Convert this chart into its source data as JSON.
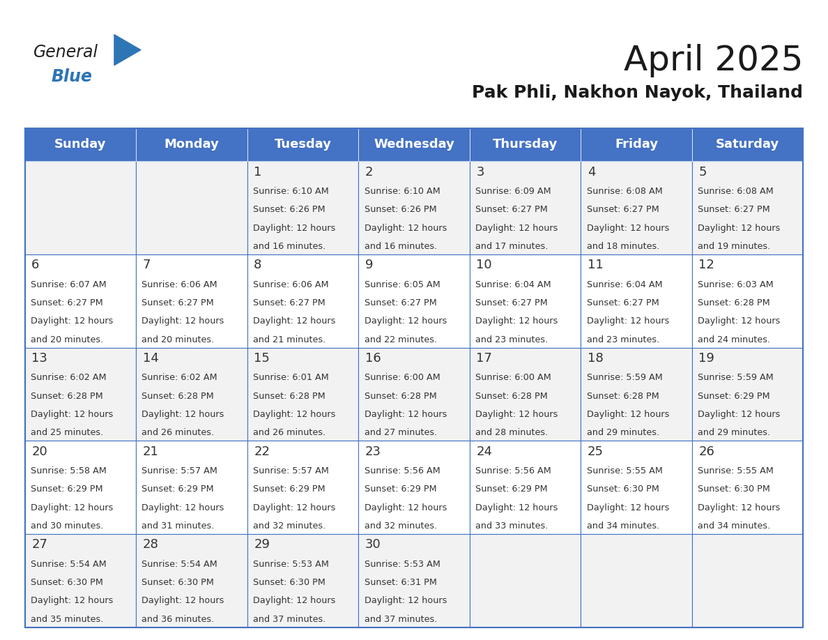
{
  "title": "April 2025",
  "subtitle": "Pak Phli, Nakhon Nayok, Thailand",
  "days_of_week": [
    "Sunday",
    "Monday",
    "Tuesday",
    "Wednesday",
    "Thursday",
    "Friday",
    "Saturday"
  ],
  "header_bg": "#4472C4",
  "header_text": "#FFFFFF",
  "row_bg_even": "#F2F2F2",
  "row_bg_odd": "#FFFFFF",
  "cell_text_color": "#333333",
  "day_number_color": "#333333",
  "border_color": "#4472C4",
  "calendar_data": [
    [
      {
        "day": null,
        "sunrise": null,
        "sunset": null,
        "daylight": null
      },
      {
        "day": null,
        "sunrise": null,
        "sunset": null,
        "daylight": null
      },
      {
        "day": 1,
        "sunrise": "6:10 AM",
        "sunset": "6:26 PM",
        "daylight": "12 hours and 16 minutes."
      },
      {
        "day": 2,
        "sunrise": "6:10 AM",
        "sunset": "6:26 PM",
        "daylight": "12 hours and 16 minutes."
      },
      {
        "day": 3,
        "sunrise": "6:09 AM",
        "sunset": "6:27 PM",
        "daylight": "12 hours and 17 minutes."
      },
      {
        "day": 4,
        "sunrise": "6:08 AM",
        "sunset": "6:27 PM",
        "daylight": "12 hours and 18 minutes."
      },
      {
        "day": 5,
        "sunrise": "6:08 AM",
        "sunset": "6:27 PM",
        "daylight": "12 hours and 19 minutes."
      }
    ],
    [
      {
        "day": 6,
        "sunrise": "6:07 AM",
        "sunset": "6:27 PM",
        "daylight": "12 hours and 20 minutes."
      },
      {
        "day": 7,
        "sunrise": "6:06 AM",
        "sunset": "6:27 PM",
        "daylight": "12 hours and 20 minutes."
      },
      {
        "day": 8,
        "sunrise": "6:06 AM",
        "sunset": "6:27 PM",
        "daylight": "12 hours and 21 minutes."
      },
      {
        "day": 9,
        "sunrise": "6:05 AM",
        "sunset": "6:27 PM",
        "daylight": "12 hours and 22 minutes."
      },
      {
        "day": 10,
        "sunrise": "6:04 AM",
        "sunset": "6:27 PM",
        "daylight": "12 hours and 23 minutes."
      },
      {
        "day": 11,
        "sunrise": "6:04 AM",
        "sunset": "6:27 PM",
        "daylight": "12 hours and 23 minutes."
      },
      {
        "day": 12,
        "sunrise": "6:03 AM",
        "sunset": "6:28 PM",
        "daylight": "12 hours and 24 minutes."
      }
    ],
    [
      {
        "day": 13,
        "sunrise": "6:02 AM",
        "sunset": "6:28 PM",
        "daylight": "12 hours and 25 minutes."
      },
      {
        "day": 14,
        "sunrise": "6:02 AM",
        "sunset": "6:28 PM",
        "daylight": "12 hours and 26 minutes."
      },
      {
        "day": 15,
        "sunrise": "6:01 AM",
        "sunset": "6:28 PM",
        "daylight": "12 hours and 26 minutes."
      },
      {
        "day": 16,
        "sunrise": "6:00 AM",
        "sunset": "6:28 PM",
        "daylight": "12 hours and 27 minutes."
      },
      {
        "day": 17,
        "sunrise": "6:00 AM",
        "sunset": "6:28 PM",
        "daylight": "12 hours and 28 minutes."
      },
      {
        "day": 18,
        "sunrise": "5:59 AM",
        "sunset": "6:28 PM",
        "daylight": "12 hours and 29 minutes."
      },
      {
        "day": 19,
        "sunrise": "5:59 AM",
        "sunset": "6:29 PM",
        "daylight": "12 hours and 29 minutes."
      }
    ],
    [
      {
        "day": 20,
        "sunrise": "5:58 AM",
        "sunset": "6:29 PM",
        "daylight": "12 hours and 30 minutes."
      },
      {
        "day": 21,
        "sunrise": "5:57 AM",
        "sunset": "6:29 PM",
        "daylight": "12 hours and 31 minutes."
      },
      {
        "day": 22,
        "sunrise": "5:57 AM",
        "sunset": "6:29 PM",
        "daylight": "12 hours and 32 minutes."
      },
      {
        "day": 23,
        "sunrise": "5:56 AM",
        "sunset": "6:29 PM",
        "daylight": "12 hours and 32 minutes."
      },
      {
        "day": 24,
        "sunrise": "5:56 AM",
        "sunset": "6:29 PM",
        "daylight": "12 hours and 33 minutes."
      },
      {
        "day": 25,
        "sunrise": "5:55 AM",
        "sunset": "6:30 PM",
        "daylight": "12 hours and 34 minutes."
      },
      {
        "day": 26,
        "sunrise": "5:55 AM",
        "sunset": "6:30 PM",
        "daylight": "12 hours and 34 minutes."
      }
    ],
    [
      {
        "day": 27,
        "sunrise": "5:54 AM",
        "sunset": "6:30 PM",
        "daylight": "12 hours and 35 minutes."
      },
      {
        "day": 28,
        "sunrise": "5:54 AM",
        "sunset": "6:30 PM",
        "daylight": "12 hours and 36 minutes."
      },
      {
        "day": 29,
        "sunrise": "5:53 AM",
        "sunset": "6:30 PM",
        "daylight": "12 hours and 37 minutes."
      },
      {
        "day": 30,
        "sunrise": "5:53 AM",
        "sunset": "6:31 PM",
        "daylight": "12 hours and 37 minutes."
      },
      {
        "day": null,
        "sunrise": null,
        "sunset": null,
        "daylight": null
      },
      {
        "day": null,
        "sunrise": null,
        "sunset": null,
        "daylight": null
      },
      {
        "day": null,
        "sunrise": null,
        "sunset": null,
        "daylight": null
      }
    ]
  ],
  "logo_text_general": "General",
  "logo_text_blue": "Blue",
  "logo_color_general": "#222222",
  "logo_color_blue": "#2E75B6",
  "logo_triangle_color": "#2E75B6"
}
